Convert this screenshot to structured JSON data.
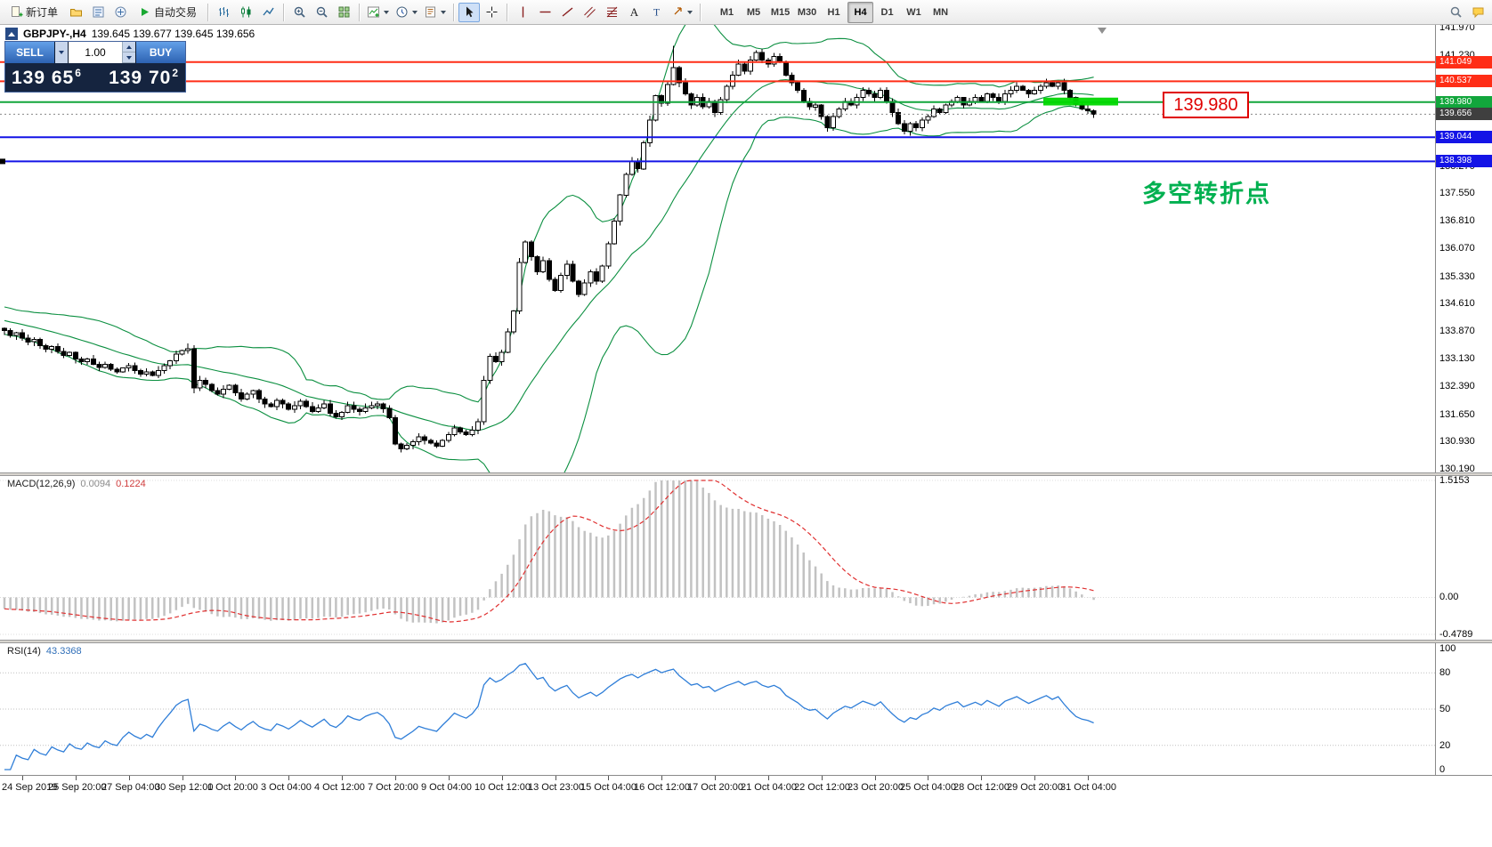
{
  "toolbar": {
    "new_order_label": "新订单",
    "autotrade_label": "自动交易",
    "icons": [
      "new-order-icon",
      "profiles-icon",
      "market-watch-icon",
      "navigator-icon",
      "autotrading-icon",
      "bar-chart-icon",
      "candlestick-chart-icon",
      "line-chart-icon",
      "zoom-in-icon",
      "zoom-out-icon",
      "tile-windows-icon",
      "indicators-icon",
      "periods-icon",
      "templates-icon",
      "cursor-icon",
      "crosshair-icon",
      "vertical-line-icon",
      "horizontal-line-icon",
      "trendline-icon",
      "channel-icon",
      "fibonacci-icon",
      "text-icon",
      "label-icon",
      "arrows-icon",
      "search-icon",
      "new-chat-icon"
    ],
    "timeframes": [
      "M1",
      "M5",
      "M15",
      "M30",
      "H1",
      "H4",
      "D1",
      "W1",
      "MN"
    ],
    "active_timeframe": "H4"
  },
  "chart": {
    "symbol_label": "GBPJPY-,H4",
    "ohlc": "139.645 139.677 139.645 139.656",
    "annotation": "多空转折点",
    "price_label_box": "139.980",
    "price_top": 141.97,
    "price_bottom": 130.19,
    "scale": [
      "141.970",
      "141.230",
      "140.490",
      "139.750",
      "139.010",
      "138.270",
      "137.550",
      "136.810",
      "136.070",
      "135.330",
      "134.610",
      "133.870",
      "133.130",
      "132.390",
      "131.650",
      "130.930",
      "130.190"
    ],
    "levels": [
      {
        "price": 141.049,
        "tag": "141.049",
        "color": "#ff2d16",
        "kind": "resistance"
      },
      {
        "price": 140.537,
        "tag": "140.537",
        "color": "#ff2d16",
        "kind": "resistance"
      },
      {
        "price": 139.98,
        "tag": "139.980",
        "color": "#12a63c",
        "kind": "pivot"
      },
      {
        "price": 139.044,
        "tag": "139.044",
        "color": "#1414e6",
        "kind": "support"
      },
      {
        "price": 138.398,
        "tag": "138.398",
        "color": "#1414e6",
        "kind": "support"
      }
    ],
    "current_price": {
      "value": 139.656,
      "tag": "139.656"
    },
    "highlight_zone": {
      "price_from": 139.89,
      "price_to": 140.1
    }
  },
  "trade_panel": {
    "sell_label": "SELL",
    "buy_label": "BUY",
    "volume": "1.00",
    "sell_price_main": "139 65",
    "sell_price_sup": "6",
    "buy_price_main": "139 70",
    "buy_price_sup": "2"
  },
  "macd": {
    "label": "MACD(12,26,9)",
    "value1": "0.0094",
    "value2": "0.1224",
    "scale_top": "1.5153",
    "scale_zero": "0.00",
    "scale_bottom": "-0.4789"
  },
  "rsi": {
    "label": "RSI(14)",
    "value": "43.3368",
    "scale": [
      "100",
      "80",
      "50",
      "20",
      "0"
    ],
    "levels": [
      80,
      50,
      20
    ]
  },
  "time_axis": [
    "24 Sep 2019",
    "25 Sep 20:00",
    "27 Sep 04:00",
    "30 Sep 12:00",
    "1 Oct 20:00",
    "3 Oct 04:00",
    "4 Oct 12:00",
    "7 Oct 20:00",
    "9 Oct 04:00",
    "10 Oct 12:00",
    "13 Oct 23:00",
    "15 Oct 04:00",
    "16 Oct 12:00",
    "17 Oct 20:00",
    "21 Oct 04:00",
    "22 Oct 12:00",
    "23 Oct 20:00",
    "25 Oct 04:00",
    "28 Oct 12:00",
    "29 Oct 20:00",
    "31 Oct 04:00"
  ],
  "chart_data": {
    "type": "candlestick",
    "symbol": "GBPJPY",
    "timeframe": "H4",
    "indicators": {
      "bollinger": {
        "period": 20,
        "deviation": 2
      },
      "macd": {
        "fast": 12,
        "slow": 26,
        "signal": 9
      },
      "rsi": {
        "period": 14
      }
    },
    "lead_in": [
      134.55,
      134.5,
      134.45,
      134.4,
      134.35,
      134.3,
      134.28,
      134.25,
      134.2,
      134.18,
      134.15,
      134.1,
      134.08,
      134.05,
      134.02,
      134.0,
      133.98,
      133.96,
      133.94,
      133.92
    ],
    "closes": [
      133.88,
      133.75,
      133.82,
      133.68,
      133.58,
      133.65,
      133.48,
      133.38,
      133.45,
      133.32,
      133.22,
      133.3,
      133.12,
      133.05,
      133.12,
      132.98,
      132.9,
      132.98,
      132.85,
      132.78,
      132.88,
      132.95,
      132.82,
      132.72,
      132.78,
      132.68,
      132.82,
      132.95,
      133.08,
      133.25,
      133.35,
      133.4,
      132.35,
      132.55,
      132.45,
      132.28,
      132.18,
      132.32,
      132.42,
      132.22,
      132.05,
      132.18,
      132.28,
      132.05,
      131.92,
      131.85,
      132.02,
      131.92,
      131.78,
      131.88,
      132.0,
      131.85,
      131.72,
      131.82,
      131.92,
      131.68,
      131.58,
      131.7,
      131.88,
      131.78,
      131.72,
      131.82,
      131.88,
      131.92,
      131.8,
      131.55,
      130.85,
      130.72,
      130.82,
      130.92,
      131.05,
      130.95,
      130.88,
      130.8,
      130.95,
      131.1,
      131.28,
      131.18,
      131.1,
      131.22,
      131.45,
      132.55,
      133.2,
      133.05,
      133.3,
      133.85,
      134.4,
      135.7,
      136.25,
      135.85,
      135.45,
      135.75,
      135.25,
      134.95,
      135.35,
      135.65,
      135.2,
      134.85,
      135.15,
      135.45,
      135.2,
      135.6,
      136.2,
      136.8,
      137.5,
      138.05,
      138.4,
      138.2,
      138.9,
      139.5,
      140.15,
      139.95,
      140.45,
      140.9,
      140.5,
      140.2,
      139.9,
      140.1,
      139.85,
      140.0,
      139.7,
      140.05,
      140.4,
      140.7,
      141.0,
      140.8,
      141.1,
      141.3,
      141.1,
      141.0,
      141.2,
      141.05,
      140.7,
      140.5,
      140.3,
      140.0,
      139.85,
      139.9,
      139.6,
      139.3,
      139.6,
      139.8,
      140.0,
      139.9,
      140.1,
      140.3,
      140.2,
      140.1,
      140.3,
      140.0,
      139.7,
      139.4,
      139.2,
      139.4,
      139.3,
      139.5,
      139.6,
      139.8,
      139.7,
      139.9,
      140.0,
      140.1,
      139.9,
      140.0,
      140.1,
      140.0,
      140.2,
      140.1,
      140.0,
      140.2,
      140.3,
      140.4,
      140.3,
      140.2,
      140.3,
      140.4,
      140.5,
      140.4,
      140.5,
      140.3,
      140.1,
      139.9,
      139.8,
      139.75,
      139.656
    ]
  }
}
